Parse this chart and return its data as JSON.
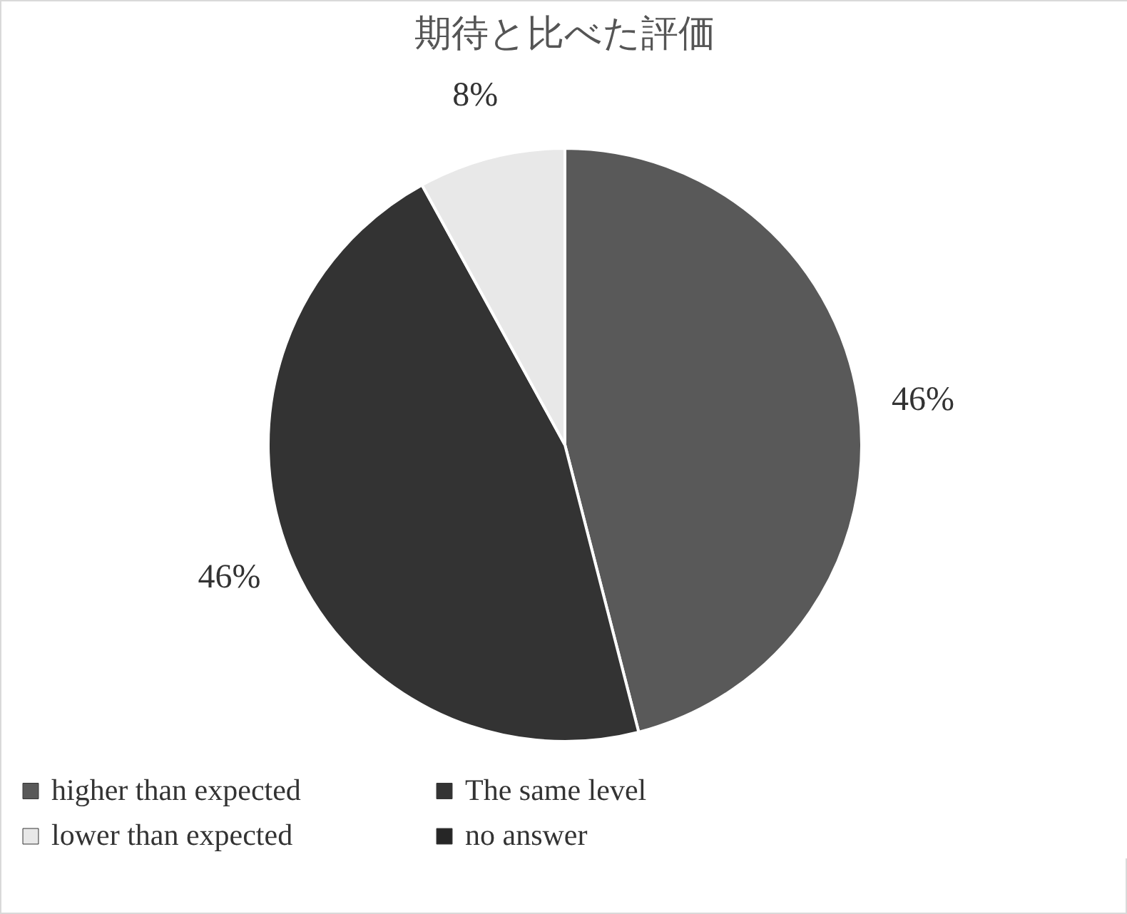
{
  "chart_data": {
    "type": "pie",
    "title": "期待と比べた評価",
    "categories": [
      "higher than expected",
      "The same level",
      "lower than expected",
      "no answer"
    ],
    "values": [
      46,
      46,
      8,
      0
    ],
    "colors": [
      "#595959",
      "#333333",
      "#e8e8e8",
      "#262626"
    ],
    "value_labels": [
      "46%",
      "46%",
      "8%",
      null
    ],
    "legend": "bottom"
  }
}
